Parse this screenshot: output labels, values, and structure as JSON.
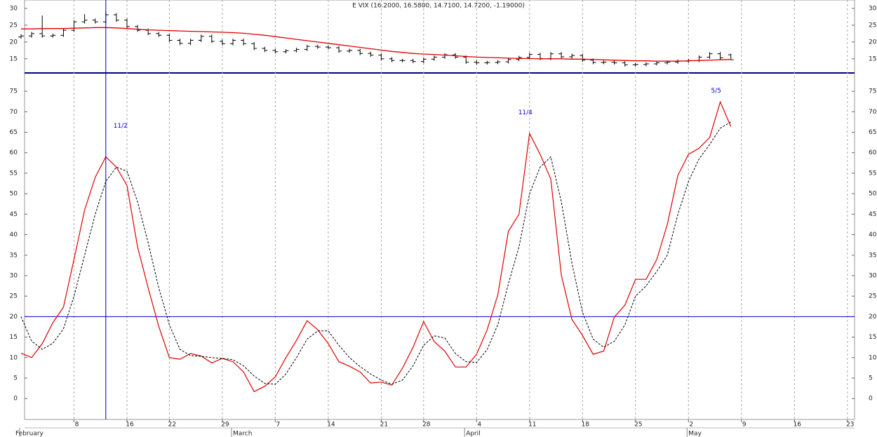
{
  "chart_data": [
    {
      "type": "ohlc",
      "title": "E VIX (16.2000, 16.5800, 14.7100, 14.7200, -1.19000)",
      "ylim": [
        11,
        32.5
      ],
      "yticks": [
        15,
        20,
        25,
        30
      ],
      "color": "#000000",
      "open": [
        21.5,
        21.8,
        22.5,
        21.8,
        22,
        23.5,
        26,
        26.5,
        26,
        28.1,
        26.5,
        24.6,
        23.5,
        22.5,
        22,
        20.5,
        19.6,
        20.5,
        21.7,
        20.2,
        19.5,
        20.5,
        19.5,
        18.1,
        17.5,
        17.1,
        17.4,
        17.8,
        18.7,
        18.5,
        18.3,
        17.3,
        17.5,
        16.6,
        16.1,
        15,
        14.5,
        14.5,
        14.2,
        14.9,
        15.5,
        16.2,
        15.5,
        14,
        13.8,
        13.9,
        14.1,
        14.8,
        15.4,
        16.3,
        15.1,
        16.5,
        15.6,
        16,
        14.6,
        13.9,
        14,
        13.8,
        13.2,
        13.3,
        13.5,
        13.8,
        14,
        14.3,
        14.5,
        15.5,
        16.5,
        16.2,
        null,
        null,
        null,
        null,
        null,
        null,
        null,
        null,
        null,
        null,
        null
      ],
      "high": [
        22.3,
        23,
        27.9,
        22.5,
        24,
        26.5,
        28.3,
        27,
        29,
        28.6,
        27,
        25.1,
        24,
        23,
        22.5,
        21,
        21,
        22.2,
        22.2,
        20.7,
        21,
        21,
        20,
        18.6,
        18,
        17.9,
        18.3,
        19.2,
        19.2,
        19,
        18.8,
        18,
        18,
        17.1,
        16.6,
        15.5,
        15,
        15,
        15.4,
        16,
        16.7,
        16.7,
        16,
        14.5,
        14.4,
        14.6,
        15.3,
        15.9,
        16.8,
        16.8,
        17,
        17,
        16.5,
        16.5,
        15.1,
        14.5,
        14.5,
        14.3,
        13.8,
        14,
        14.3,
        14.5,
        14.8,
        15,
        16,
        17,
        17,
        16.58,
        null,
        null,
        null,
        null,
        null,
        null,
        null,
        null,
        null,
        null,
        null
      ],
      "low": [
        21,
        21.3,
        21.3,
        21.3,
        21.5,
        23,
        25.5,
        25.5,
        25.5,
        26,
        24.1,
        23,
        22,
        21.5,
        20,
        19.1,
        19.1,
        20,
        19.7,
        19,
        19,
        19,
        17.6,
        17,
        16.6,
        16.6,
        16.9,
        17.3,
        18,
        17.8,
        16.8,
        16.8,
        16.1,
        15.6,
        14.5,
        14,
        14,
        13.7,
        13.7,
        14.4,
        15,
        15,
        13.5,
        13.3,
        13.3,
        13.4,
        13.6,
        14.3,
        14.9,
        14.6,
        14.6,
        15.1,
        15.1,
        14.1,
        13.4,
        13.4,
        13.3,
        12.7,
        12.7,
        12.8,
        13,
        13.3,
        13.5,
        13.8,
        14,
        15,
        14.8,
        14.71,
        null,
        null,
        null,
        null,
        null,
        null,
        null,
        null,
        null,
        null,
        null
      ],
      "close": [
        21.8,
        22.5,
        21.8,
        22,
        23.5,
        26,
        26.5,
        26,
        28.1,
        26.5,
        24.6,
        23.5,
        22.5,
        22,
        20.5,
        19.6,
        20.5,
        21.7,
        20.2,
        19.5,
        20.5,
        19.5,
        18.1,
        17.5,
        17.1,
        17.4,
        17.8,
        18.7,
        18.5,
        18.3,
        17.3,
        17.5,
        16.6,
        16.1,
        15,
        14.5,
        14.5,
        14.2,
        14.9,
        15.5,
        16.2,
        15.5,
        14,
        13.8,
        13.9,
        14.1,
        14.8,
        15.4,
        16.3,
        15.1,
        16.5,
        15.6,
        16,
        14.6,
        13.9,
        14,
        13.8,
        13.2,
        13.3,
        13.5,
        13.8,
        14,
        14.3,
        14.5,
        15.5,
        16.5,
        15.3,
        14.72,
        null,
        null,
        null,
        null,
        null,
        null,
        null,
        null,
        null,
        null,
        null
      ],
      "series": [
        {
          "color": "#e00000",
          "values": [
            23.9,
            23.9,
            24,
            24,
            24,
            24.1,
            24.2,
            24.3,
            24.3,
            24.2,
            24,
            23.8,
            23.6,
            23.5,
            23.4,
            23.3,
            23.2,
            23.1,
            23,
            22.9,
            22.8,
            22.6,
            22.3,
            22,
            21.6,
            21.2,
            20.8,
            20.4,
            20,
            19.6,
            19.2,
            18.8,
            18.4,
            18,
            17.6,
            17.2,
            16.9,
            16.6,
            16.4,
            16.3,
            16.1,
            15.9,
            15.7,
            15.5,
            15.4,
            15.3,
            15.2,
            15.1,
            15.1,
            15,
            15,
            15,
            14.9,
            14.9,
            14.8,
            14.7,
            14.6,
            14.5,
            14.4,
            14.4,
            14.3,
            14.3,
            14.3,
            14.4,
            14.5,
            14.6,
            14.7,
            14.8,
            null,
            null,
            null,
            null,
            null,
            null,
            null,
            null,
            null,
            null,
            null
          ]
        }
      ]
    },
    {
      "type": "line",
      "ylim": [
        -5.1,
        79.3
      ],
      "yticks": [
        0,
        5,
        10,
        15,
        20,
        25,
        30,
        35,
        40,
        45,
        50,
        55,
        60,
        65,
        70,
        75
      ],
      "categories": [
        null,
        null,
        null,
        null,
        null,
        "8",
        null,
        null,
        null,
        null,
        "16",
        null,
        null,
        null,
        "22",
        null,
        null,
        null,
        null,
        "29",
        null,
        null,
        null,
        null,
        "7",
        null,
        null,
        null,
        null,
        "14",
        null,
        null,
        null,
        null,
        "21",
        null,
        null,
        null,
        "28",
        null,
        null,
        null,
        null,
        "4",
        null,
        null,
        null,
        null,
        "11",
        null,
        null,
        null,
        null,
        "18",
        null,
        null,
        null,
        null,
        "25",
        null,
        null,
        null,
        null,
        "2",
        null,
        null,
        null,
        null,
        "9",
        null,
        null,
        null,
        null,
        "16",
        null,
        null,
        null,
        null,
        "23"
      ],
      "months": [
        "February",
        null,
        null,
        null,
        null,
        null,
        null,
        null,
        null,
        null,
        null,
        null,
        null,
        null,
        null,
        null,
        null,
        null,
        null,
        null,
        "March",
        null,
        null,
        null,
        null,
        null,
        null,
        null,
        null,
        null,
        null,
        null,
        null,
        null,
        null,
        null,
        null,
        null,
        null,
        null,
        null,
        null,
        "April",
        null,
        null,
        null,
        null,
        null,
        null,
        null,
        null,
        null,
        null,
        null,
        null,
        null,
        null,
        null,
        null,
        null,
        null,
        null,
        null,
        "May",
        null,
        null,
        null,
        null,
        null,
        null,
        null,
        null,
        null,
        null,
        null,
        null,
        null,
        null,
        null
      ],
      "xgrid": true,
      "hline": 20,
      "hline_color": "#0000cc",
      "crosshair_index": 8,
      "crosshair_color": "#0000aa",
      "series": [
        {
          "color": "#e00000",
          "dashed": false,
          "values": [
            11.1,
            10,
            13.4,
            18.5,
            22.3,
            34,
            46,
            54,
            59,
            56.5,
            52,
            37,
            27,
            17.6,
            10,
            9.6,
            11,
            10.4,
            8.7,
            9.8,
            9,
            6.5,
            1.7,
            3,
            5.3,
            10,
            14.2,
            19,
            16.8,
            13.4,
            9,
            7.9,
            6.5,
            3.8,
            4,
            3.3,
            7.4,
            12.5,
            18.8,
            13.9,
            11.6,
            7.7,
            7.7,
            10.8,
            16.8,
            25.3,
            40.8,
            45,
            64.7,
            59.6,
            53.6,
            30.1,
            19.3,
            15.4,
            10.8,
            11.6,
            19.9,
            22.8,
            29.1,
            29.1,
            33.9,
            42.5,
            54.5,
            59.6,
            61.1,
            63.7,
            72.4,
            66.4,
            null,
            null,
            null,
            null,
            null,
            null,
            null,
            null,
            null,
            null,
            null
          ]
        },
        {
          "color": "#000000",
          "dashed": true,
          "values": [
            20,
            14,
            12,
            13.5,
            17,
            25,
            35,
            45,
            53,
            56.5,
            55.5,
            48,
            38,
            27,
            18,
            12,
            10.5,
            10.3,
            10,
            9.8,
            9.5,
            8,
            5.5,
            3.7,
            3.5,
            6,
            10,
            14.5,
            16.5,
            16.5,
            13,
            10,
            7.8,
            6,
            4.5,
            3.5,
            4.5,
            8,
            13,
            15.3,
            14.8,
            11,
            9,
            8.8,
            12,
            18,
            28,
            37,
            50,
            56.5,
            59,
            48,
            33,
            21,
            14.5,
            12.5,
            14,
            18,
            25,
            27.5,
            31,
            35,
            45,
            53,
            58.5,
            62,
            66,
            67.5,
            null,
            null,
            null,
            null,
            null,
            null,
            null,
            null,
            null,
            null,
            null
          ]
        }
      ],
      "annotations": [
        {
          "text": "11/2",
          "index": 8
        },
        {
          "text": "11/4",
          "index": 48
        },
        {
          "text": "5/5",
          "index": 66
        }
      ],
      "annotation_color": "#0000cc"
    }
  ]
}
